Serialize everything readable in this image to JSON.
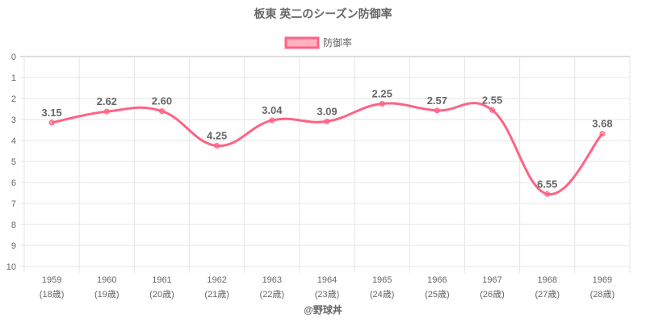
{
  "chart_data": {
    "type": "line",
    "title": "板東 英二のシーズン防御率",
    "legend": {
      "label": "防御率",
      "placement": "top-center"
    },
    "categories": [
      "1959",
      "1960",
      "1961",
      "1962",
      "1963",
      "1964",
      "1965",
      "1966",
      "1967",
      "1968",
      "1969"
    ],
    "category_sublabels": [
      "(18歳)",
      "(19歳)",
      "(20歳)",
      "(21歳)",
      "(22歳)",
      "(23歳)",
      "(24歳)",
      "(25歳)",
      "(26歳)",
      "(27歳)",
      "(28歳)"
    ],
    "series": [
      {
        "name": "防御率",
        "values": [
          3.15,
          2.62,
          2.6,
          4.25,
          3.04,
          3.09,
          2.25,
          2.57,
          2.55,
          6.55,
          3.68
        ]
      }
    ],
    "data_labels": [
      "3.15",
      "2.62",
      "2.60",
      "4.25",
      "3.04",
      "3.09",
      "2.25",
      "2.57",
      "2.55",
      "6.55",
      "3.68"
    ],
    "ylim": [
      0,
      10
    ],
    "y_reversed": true,
    "y_ticks": [
      "0",
      "1",
      "2",
      "3",
      "4",
      "5",
      "6",
      "7",
      "8",
      "9",
      "10"
    ],
    "grid": true,
    "line_color": "#ff6384",
    "footer": "@野球丼"
  }
}
